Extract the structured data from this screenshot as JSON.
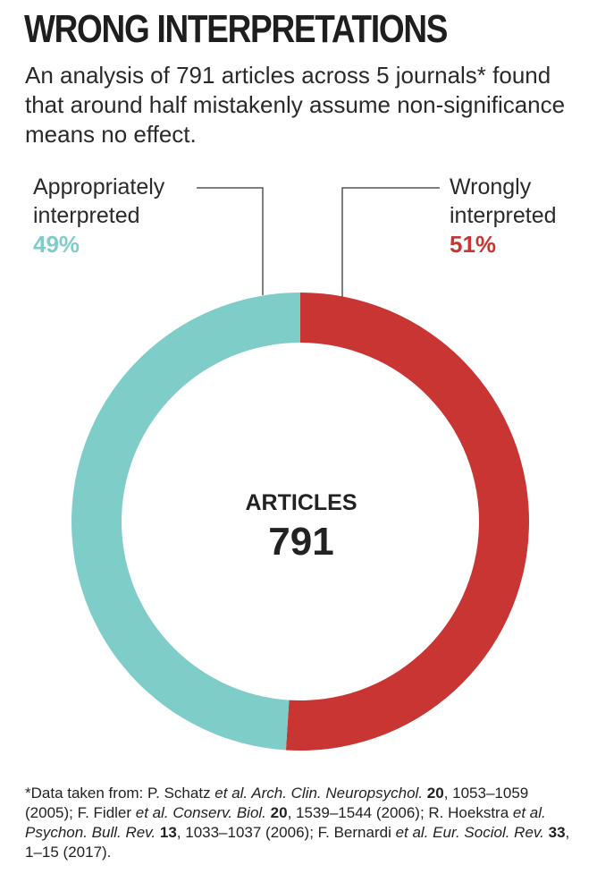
{
  "title": "WRONG INTERPRETATIONS",
  "subtitle": "An analysis of 791 articles across 5 journals* found that around half mistakenly assume non-significance means no effect.",
  "chart_data": {
    "type": "pie",
    "center_label": "ARTICLES",
    "center_value": "791",
    "slices": [
      {
        "label_line1": "Wrongly",
        "label_line2": "interpreted",
        "value": 51,
        "pct_label": "51%",
        "color": "#c93533"
      },
      {
        "label_line1": "Appropriately",
        "label_line2": "interpreted",
        "value": 49,
        "pct_label": "49%",
        "color": "#7fcdc9"
      }
    ]
  },
  "footnote": [
    {
      "t": "*Data taken from: P. Schatz "
    },
    {
      "t": "et al. Arch. Clin. Neuropsychol.",
      "s": "i"
    },
    {
      "t": " "
    },
    {
      "t": "20",
      "s": "b"
    },
    {
      "t": ", 1053–1059 (2005); F. Fidler "
    },
    {
      "t": "et al. Conserv. Biol.",
      "s": "i"
    },
    {
      "t": " "
    },
    {
      "t": "20",
      "s": "b"
    },
    {
      "t": ", 1539–1544 (2006); R. Hoekstra "
    },
    {
      "t": "et al. Psychon. Bull. Rev.",
      "s": "i"
    },
    {
      "t": " "
    },
    {
      "t": "13",
      "s": "b"
    },
    {
      "t": ", 1033–1037 (2006); F. Bernardi "
    },
    {
      "t": "et al. Eur. Sociol. Rev.",
      "s": "i"
    },
    {
      "t": " "
    },
    {
      "t": "33",
      "s": "b"
    },
    {
      "t": ", 1–15 (2017)."
    }
  ]
}
